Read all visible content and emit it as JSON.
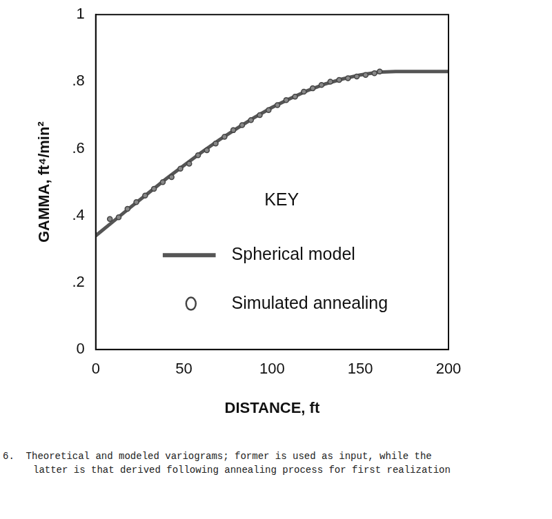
{
  "chart_data": {
    "type": "line",
    "xlabel": "DISTANCE, ft",
    "ylabel": "GAMMA, ft⁴/min²",
    "caption": "6.  Theoretical and modeled variograms; former is used as input, while the latter is that derived following annealing process for first realization",
    "legend_title": "KEY",
    "legend": "lower right",
    "grid": false,
    "xlim": [
      0,
      200
    ],
    "xticks": [
      0,
      50,
      100,
      150,
      200
    ],
    "ylim": [
      0,
      1
    ],
    "yticks": [
      0,
      {
        "value": 0.2,
        "label": ".2"
      },
      {
        "value": 0.4,
        "label": ".4"
      },
      {
        "value": 0.6,
        "label": ".6"
      },
      {
        "value": 0.8,
        "label": ".8"
      },
      1
    ],
    "series": [
      {
        "name": "Spherical model",
        "type": "line",
        "color": "#555555",
        "line_style": "solid",
        "marker": "none",
        "x": [
          0,
          10,
          20,
          30,
          40,
          50,
          60,
          70,
          80,
          90,
          100,
          110,
          120,
          130,
          140,
          150,
          160,
          170,
          180,
          190,
          200
        ],
        "values": [
          0.34,
          0.383,
          0.426,
          0.468,
          0.51,
          0.55,
          0.589,
          0.626,
          0.66,
          0.693,
          0.723,
          0.749,
          0.773,
          0.793,
          0.808,
          0.82,
          0.828,
          0.83,
          0.83,
          0.83,
          0.83
        ]
      },
      {
        "name": "Simulated annealing",
        "type": "scatter",
        "color": "#444444",
        "marker": "circle",
        "x": [
          8,
          13,
          18,
          23,
          28,
          33,
          38,
          43,
          48,
          53,
          58,
          63,
          68,
          73,
          78,
          83,
          88,
          93,
          98,
          103,
          108,
          113,
          118,
          123,
          128,
          133,
          138,
          143,
          148,
          153,
          158,
          161
        ],
        "values": [
          0.39,
          0.395,
          0.42,
          0.44,
          0.46,
          0.48,
          0.5,
          0.515,
          0.54,
          0.555,
          0.58,
          0.595,
          0.615,
          0.635,
          0.655,
          0.67,
          0.685,
          0.7,
          0.715,
          0.73,
          0.745,
          0.755,
          0.77,
          0.78,
          0.79,
          0.8,
          0.805,
          0.81,
          0.815,
          0.82,
          0.825,
          0.83
        ]
      }
    ]
  }
}
